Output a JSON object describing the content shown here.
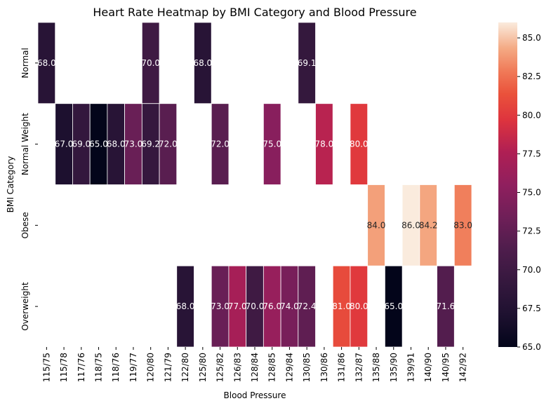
{
  "chart_data": {
    "type": "heatmap",
    "title": "Heart Rate Heatmap by BMI Category and Blood Pressure",
    "xlabel": "Blood Pressure",
    "ylabel": "BMI Category",
    "x_categories": [
      "115/75",
      "115/78",
      "117/76",
      "118/75",
      "118/76",
      "119/77",
      "120/80",
      "121/79",
      "122/80",
      "125/80",
      "125/82",
      "126/83",
      "128/84",
      "128/85",
      "129/84",
      "130/85",
      "130/86",
      "131/86",
      "132/87",
      "135/88",
      "135/90",
      "139/91",
      "140/90",
      "140/95",
      "142/92"
    ],
    "y_categories": [
      "Normal",
      "Normal Weight",
      "Obese",
      "Overweight"
    ],
    "values": [
      [
        68.0,
        null,
        null,
        null,
        null,
        null,
        70.0,
        null,
        null,
        68.0,
        null,
        null,
        null,
        null,
        null,
        69.1,
        null,
        null,
        null,
        null,
        null,
        null,
        null,
        null,
        null
      ],
      [
        null,
        67.0,
        69.0,
        65.0,
        68.0,
        73.0,
        69.2,
        72.0,
        null,
        null,
        72.0,
        null,
        null,
        75.0,
        null,
        null,
        78.0,
        null,
        80.0,
        null,
        null,
        null,
        null,
        null,
        null
      ],
      [
        null,
        null,
        null,
        null,
        null,
        null,
        null,
        null,
        null,
        null,
        null,
        null,
        null,
        null,
        null,
        null,
        null,
        null,
        null,
        84.0,
        null,
        86.0,
        84.2,
        null,
        83.0
      ],
      [
        null,
        null,
        null,
        null,
        null,
        null,
        null,
        null,
        68.0,
        null,
        73.0,
        77.0,
        70.0,
        76.0,
        74.0,
        72.4,
        null,
        81.0,
        80.0,
        null,
        65.0,
        null,
        null,
        71.6,
        null
      ]
    ],
    "value_format": "0.0",
    "colorbar": {
      "min": 65.0,
      "max": 86.0,
      "ticks": [
        "65.0",
        "67.5",
        "70.0",
        "72.5",
        "75.0",
        "77.5",
        "80.0",
        "82.5",
        "85.0"
      ],
      "colormap": "rocket"
    },
    "grid": false
  }
}
